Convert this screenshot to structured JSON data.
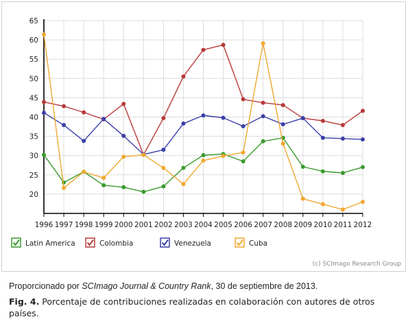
{
  "chart_data": {
    "type": "line",
    "x": [
      1996,
      1997,
      1998,
      1999,
      2000,
      2001,
      2002,
      2003,
      2004,
      2005,
      2006,
      2007,
      2008,
      2009,
      2010,
      2011,
      2012
    ],
    "ylim": [
      15,
      65
    ],
    "yticks": [
      20,
      25,
      30,
      35,
      40,
      45,
      50,
      55,
      60,
      65
    ],
    "grid": true,
    "legend_position": "bottom",
    "series": [
      {
        "name": "Latin America",
        "color": "#3a9a2e",
        "values": [
          30.2,
          23.0,
          25.8,
          22.3,
          21.8,
          20.6,
          22.0,
          26.8,
          30.1,
          30.4,
          28.5,
          33.7,
          34.6,
          27.1,
          25.9,
          25.5,
          27.0
        ]
      },
      {
        "name": "Colombia",
        "color": "#b8393a",
        "values": [
          43.9,
          42.8,
          41.2,
          39.4,
          43.4,
          30.2,
          39.7,
          50.5,
          57.4,
          58.7,
          44.6,
          43.7,
          43.1,
          39.7,
          39.0,
          37.9,
          41.6
        ]
      },
      {
        "name": "Venezuela",
        "color": "#3a3fa8",
        "values": [
          41.1,
          37.9,
          33.8,
          39.5,
          35.1,
          30.3,
          31.5,
          38.3,
          40.4,
          39.8,
          37.6,
          40.2,
          38.1,
          39.7,
          34.6,
          34.4,
          34.2
        ]
      },
      {
        "name": "Cuba",
        "color": "#f0a830",
        "values": [
          61.4,
          21.6,
          25.8,
          24.2,
          29.7,
          30.2,
          26.8,
          22.6,
          28.7,
          29.9,
          30.8,
          59.1,
          33.1,
          18.8,
          17.4,
          16.0,
          18.0
        ]
      }
    ]
  },
  "credit": "(c) SCImago Research Group",
  "source": {
    "prefix": "Proporcionado por ",
    "italic": "SCImago Journal & Country Rank",
    "suffix": ", 30 de septiembre de 2013."
  },
  "caption": {
    "label": "Fig. 4.",
    "text": " Porcentaje de contribuciones  realizadas en colaboración con autores de otros países."
  }
}
